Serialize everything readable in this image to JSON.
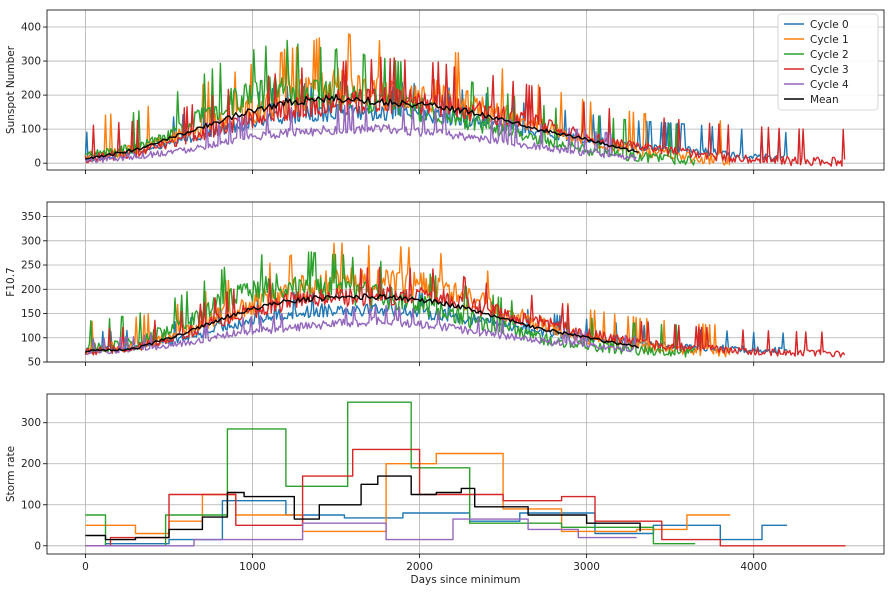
{
  "chart_data": [
    {
      "type": "line",
      "ylabel": "Sunspot Number",
      "xlim": [
        -230,
        4780
      ],
      "ylim": [
        -20,
        450
      ],
      "yticks": [
        0,
        100,
        200,
        300,
        400
      ],
      "grid": true,
      "legend": {
        "placement": "top-right",
        "entries": [
          "Cycle 0",
          "Cycle 1",
          "Cycle 2",
          "Cycle 3",
          "Cycle 4",
          "Mean"
        ]
      },
      "series": [
        {
          "name": "Cycle 0",
          "color": "#1f77b4",
          "end": 4200,
          "x": [
            0,
            300,
            600,
            900,
            1200,
            1500,
            1800,
            2100,
            2400,
            2700,
            3000,
            3300,
            3600,
            3900,
            4200
          ],
          "y": [
            15,
            30,
            70,
            110,
            140,
            150,
            150,
            140,
            120,
            90,
            70,
            50,
            40,
            25,
            15
          ],
          "spread": 40
        },
        {
          "name": "Cycle 1",
          "color": "#ff7f0e",
          "end": 3860,
          "x": [
            0,
            300,
            600,
            900,
            1200,
            1500,
            1800,
            2100,
            2400,
            2700,
            3000,
            3300,
            3600,
            3860
          ],
          "y": [
            20,
            40,
            90,
            140,
            190,
            230,
            210,
            200,
            160,
            110,
            70,
            35,
            20,
            10
          ],
          "spread": 60
        },
        {
          "name": "Cycle 2",
          "color": "#2ca02c",
          "end": 3650,
          "x": [
            0,
            300,
            600,
            900,
            1200,
            1500,
            1800,
            2100,
            2400,
            2700,
            3000,
            3300,
            3650
          ],
          "y": [
            20,
            45,
            110,
            190,
            220,
            200,
            180,
            150,
            110,
            70,
            40,
            20,
            8
          ],
          "spread": 55
        },
        {
          "name": "Cycle 3",
          "color": "#d62728",
          "end": 4550,
          "x": [
            0,
            300,
            600,
            900,
            1200,
            1500,
            1800,
            2100,
            2400,
            2700,
            3000,
            3300,
            3600,
            3900,
            4200,
            4550
          ],
          "y": [
            15,
            30,
            70,
            120,
            160,
            180,
            190,
            180,
            150,
            120,
            80,
            50,
            30,
            15,
            8,
            5
          ],
          "spread": 50
        },
        {
          "name": "Cycle 4",
          "color": "#9467bd",
          "end": 3300,
          "x": [
            0,
            300,
            600,
            900,
            1200,
            1500,
            1800,
            2100,
            2400,
            2700,
            3000,
            3300
          ],
          "y": [
            8,
            20,
            40,
            70,
            90,
            100,
            100,
            90,
            70,
            50,
            30,
            15
          ],
          "spread": 35
        },
        {
          "name": "Mean",
          "color": "#000000",
          "end": 3320,
          "x": [
            0,
            300,
            600,
            900,
            1200,
            1500,
            1800,
            2100,
            2400,
            2700,
            3000,
            3320
          ],
          "y": [
            10,
            40,
            90,
            140,
            180,
            190,
            180,
            170,
            140,
            100,
            70,
            30
          ],
          "spread": 14
        }
      ]
    },
    {
      "type": "line",
      "ylabel": "F10.7",
      "xlim": [
        -230,
        4780
      ],
      "ylim": [
        50,
        380
      ],
      "yticks": [
        50,
        100,
        150,
        200,
        250,
        300,
        350
      ],
      "grid": true,
      "series": [
        {
          "name": "Cycle 0",
          "color": "#1f77b4",
          "end": 4200,
          "x": [
            0,
            300,
            600,
            900,
            1200,
            1500,
            1800,
            2100,
            2400,
            2700,
            3000,
            3300,
            3600,
            3900,
            4200
          ],
          "y": [
            75,
            80,
            100,
            130,
            150,
            160,
            160,
            150,
            135,
            115,
            100,
            90,
            82,
            77,
            74
          ],
          "spread": 18
        },
        {
          "name": "Cycle 1",
          "color": "#ff7f0e",
          "end": 3860,
          "x": [
            0,
            300,
            600,
            900,
            1200,
            1500,
            1800,
            2100,
            2400,
            2700,
            3000,
            3300,
            3600,
            3860
          ],
          "y": [
            78,
            85,
            115,
            160,
            195,
            220,
            215,
            205,
            170,
            130,
            100,
            85,
            75,
            70
          ],
          "spread": 28
        },
        {
          "name": "Cycle 2",
          "color": "#2ca02c",
          "end": 3650,
          "x": [
            0,
            300,
            600,
            900,
            1200,
            1500,
            1800,
            2100,
            2400,
            2700,
            3000,
            3300,
            3650
          ],
          "y": [
            78,
            90,
            130,
            190,
            210,
            200,
            185,
            160,
            130,
            100,
            85,
            75,
            70
          ],
          "spread": 28
        },
        {
          "name": "Cycle 3",
          "color": "#d62728",
          "end": 4550,
          "x": [
            0,
            300,
            600,
            900,
            1200,
            1500,
            1800,
            2100,
            2400,
            2700,
            3000,
            3300,
            3600,
            3900,
            4200,
            4550
          ],
          "y": [
            72,
            80,
            110,
            150,
            175,
            185,
            190,
            185,
            160,
            135,
            110,
            90,
            80,
            74,
            70,
            68
          ],
          "spread": 22
        },
        {
          "name": "Cycle 4",
          "color": "#9467bd",
          "end": 3300,
          "x": [
            0,
            300,
            600,
            900,
            1200,
            1500,
            1800,
            2100,
            2400,
            2700,
            3000,
            3300
          ],
          "y": [
            70,
            75,
            90,
            110,
            120,
            130,
            135,
            125,
            110,
            95,
            85,
            75
          ],
          "spread": 14
        },
        {
          "name": "Mean",
          "color": "#000000",
          "end": 3320,
          "x": [
            0,
            300,
            600,
            900,
            1200,
            1500,
            1800,
            2100,
            2400,
            2700,
            3000,
            3320
          ],
          "y": [
            72,
            78,
            110,
            150,
            175,
            185,
            185,
            175,
            150,
            120,
            100,
            80
          ],
          "spread": 6
        }
      ]
    },
    {
      "type": "line",
      "xlabel": "Days since minimum",
      "ylabel": "Storm rate",
      "xlim": [
        -230,
        4780
      ],
      "ylim": [
        -20,
        370
      ],
      "yticks": [
        0,
        100,
        200,
        300
      ],
      "xticks": [
        0,
        1000,
        2000,
        3000,
        4000
      ],
      "grid": true,
      "series": [
        {
          "name": "Cycle 0",
          "color": "#1f77b4",
          "steps": [
            [
              0,
              0
            ],
            [
              120,
              5
            ],
            [
              500,
              15
            ],
            [
              820,
              110
            ],
            [
              1200,
              75
            ],
            [
              1550,
              68
            ],
            [
              1900,
              80
            ],
            [
              2300,
              60
            ],
            [
              2600,
              80
            ],
            [
              3050,
              30
            ],
            [
              3400,
              50
            ],
            [
              3800,
              15
            ],
            [
              4050,
              50
            ],
            [
              4200,
              50
            ]
          ]
        },
        {
          "name": "Cycle 1",
          "color": "#ff7f0e",
          "steps": [
            [
              0,
              50
            ],
            [
              300,
              30
            ],
            [
              500,
              60
            ],
            [
              700,
              125
            ],
            [
              900,
              75
            ],
            [
              1300,
              35
            ],
            [
              1800,
              200
            ],
            [
              2100,
              225
            ],
            [
              2500,
              90
            ],
            [
              2850,
              35
            ],
            [
              3300,
              40
            ],
            [
              3600,
              75
            ],
            [
              3860,
              75
            ]
          ]
        },
        {
          "name": "Cycle 2",
          "color": "#2ca02c",
          "steps": [
            [
              0,
              75
            ],
            [
              120,
              0
            ],
            [
              480,
              75
            ],
            [
              850,
              285
            ],
            [
              1200,
              145
            ],
            [
              1570,
              350
            ],
            [
              1950,
              190
            ],
            [
              2300,
              55
            ],
            [
              2850,
              45
            ],
            [
              3400,
              5
            ],
            [
              3650,
              5
            ]
          ]
        },
        {
          "name": "Cycle 3",
          "color": "#d62728",
          "steps": [
            [
              0,
              0
            ],
            [
              150,
              20
            ],
            [
              500,
              125
            ],
            [
              900,
              50
            ],
            [
              1300,
              170
            ],
            [
              1600,
              235
            ],
            [
              2000,
              125
            ],
            [
              2500,
              110
            ],
            [
              2850,
              120
            ],
            [
              3050,
              60
            ],
            [
              3450,
              15
            ],
            [
              3800,
              0
            ],
            [
              4550,
              0
            ]
          ]
        },
        {
          "name": "Cycle 4",
          "color": "#9467bd",
          "steps": [
            [
              0,
              0
            ],
            [
              650,
              15
            ],
            [
              1300,
              55
            ],
            [
              1800,
              15
            ],
            [
              2200,
              65
            ],
            [
              2650,
              40
            ],
            [
              2950,
              20
            ],
            [
              3300,
              20
            ]
          ]
        },
        {
          "name": "Mean",
          "color": "#000000",
          "steps": [
            [
              0,
              25
            ],
            [
              120,
              15
            ],
            [
              300,
              20
            ],
            [
              500,
              40
            ],
            [
              700,
              70
            ],
            [
              850,
              130
            ],
            [
              950,
              120
            ],
            [
              1250,
              65
            ],
            [
              1400,
              100
            ],
            [
              1650,
              150
            ],
            [
              1750,
              170
            ],
            [
              1950,
              125
            ],
            [
              2100,
              130
            ],
            [
              2250,
              140
            ],
            [
              2330,
              95
            ],
            [
              2650,
              75
            ],
            [
              3000,
              55
            ],
            [
              3320,
              35
            ]
          ]
        }
      ]
    }
  ]
}
